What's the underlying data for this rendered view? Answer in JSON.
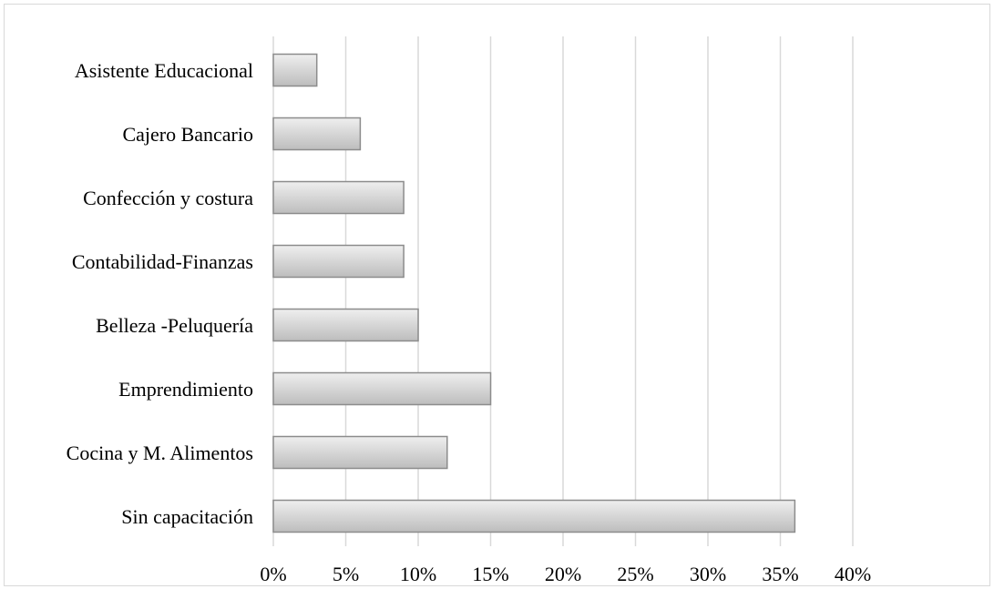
{
  "chart_data": {
    "type": "bar",
    "orientation": "horizontal",
    "title": "",
    "xlabel": "",
    "ylabel": "",
    "categories": [
      "Asistente Educacional",
      "Cajero Bancario",
      "Confección y costura",
      "Contabilidad-Finanzas",
      "Belleza -Peluquería",
      "Emprendimiento",
      "Cocina y M. Alimentos",
      "Sin capacitación"
    ],
    "values": [
      3,
      6,
      9,
      9,
      10,
      15,
      12,
      36
    ],
    "value_unit": "%",
    "xlim": [
      0,
      40
    ],
    "xticks": [
      "0%",
      "5%",
      "10%",
      "15%",
      "20%",
      "25%",
      "30%",
      "35%",
      "40%"
    ],
    "grid": true,
    "legend": "none",
    "bar_fill_top": "#efefef",
    "bar_fill_bottom": "#bdbdbd",
    "bar_stroke": "#8c8c8c",
    "grid_color": "#d9d9d9"
  }
}
